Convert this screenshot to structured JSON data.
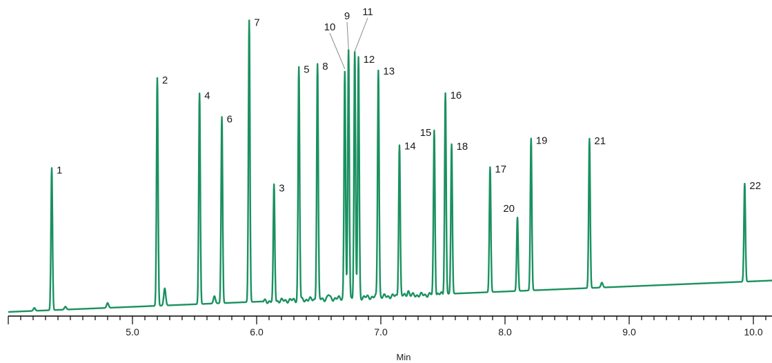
{
  "chart_data": {
    "type": "line",
    "title": "",
    "xlabel": "Min",
    "ylabel": "",
    "xlim": [
      4.0,
      10.15
    ],
    "x_ticks": [
      "5.0",
      "6.0",
      "7.0",
      "8.0",
      "9.0",
      "10.0"
    ],
    "grid": false,
    "legend": "none",
    "line_color": "#1a9160",
    "peaks": [
      {
        "label": "1",
        "rt": 4.35,
        "height": 0.58
      },
      {
        "label": "2",
        "rt": 5.2,
        "height": 0.93
      },
      {
        "label": "4",
        "rt": 5.54,
        "height": 0.86
      },
      {
        "label": "6",
        "rt": 5.72,
        "height": 0.76
      },
      {
        "label": "7",
        "rt": 5.94,
        "height": 1.15
      },
      {
        "label": "3",
        "rt": 6.14,
        "height": 0.47
      },
      {
        "label": "5",
        "rt": 6.34,
        "height": 0.95
      },
      {
        "label": "8",
        "rt": 6.49,
        "height": 0.96
      },
      {
        "label": "10",
        "rt": 6.71,
        "height": 0.93
      },
      {
        "label": "9",
        "rt": 6.74,
        "height": 1.01
      },
      {
        "label": "11",
        "rt": 6.79,
        "height": 1.0
      },
      {
        "label": "12",
        "rt": 6.82,
        "height": 0.98
      },
      {
        "label": "13",
        "rt": 6.98,
        "height": 0.93
      },
      {
        "label": "14",
        "rt": 7.15,
        "height": 0.62
      },
      {
        "label": "15",
        "rt": 7.43,
        "height": 0.67
      },
      {
        "label": "16",
        "rt": 7.52,
        "height": 0.82
      },
      {
        "label": "18",
        "rt": 7.57,
        "height": 0.61
      },
      {
        "label": "17",
        "rt": 7.88,
        "height": 0.51
      },
      {
        "label": "20",
        "rt": 8.1,
        "height": 0.3
      },
      {
        "label": "19",
        "rt": 8.21,
        "height": 0.62
      },
      {
        "label": "21",
        "rt": 8.68,
        "height": 0.61
      },
      {
        "label": "22",
        "rt": 9.93,
        "height": 0.4
      }
    ]
  }
}
